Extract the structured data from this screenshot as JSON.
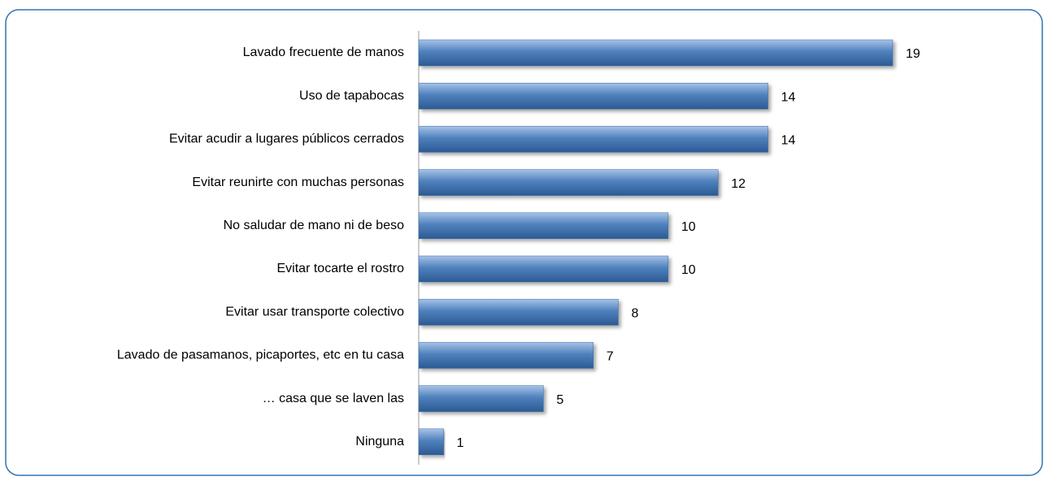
{
  "chart_data": {
    "type": "bar",
    "orientation": "horizontal",
    "categories": [
      "Lavado frecuente de manos",
      "Uso de tapabocas",
      "Evitar acudir a lugares públicos cerrados",
      "Evitar reunirte con muchas personas",
      "No saludar de mano ni de beso",
      "Evitar tocarte el rostro",
      "Evitar usar transporte colectivo",
      "Lavado de pasamanos,  picaportes, etc en tu casa",
      "… casa que se laven las",
      "Ninguna"
    ],
    "values": [
      19,
      14,
      14,
      12,
      10,
      10,
      8,
      7,
      5,
      1
    ],
    "color": "#4f81bd"
  }
}
